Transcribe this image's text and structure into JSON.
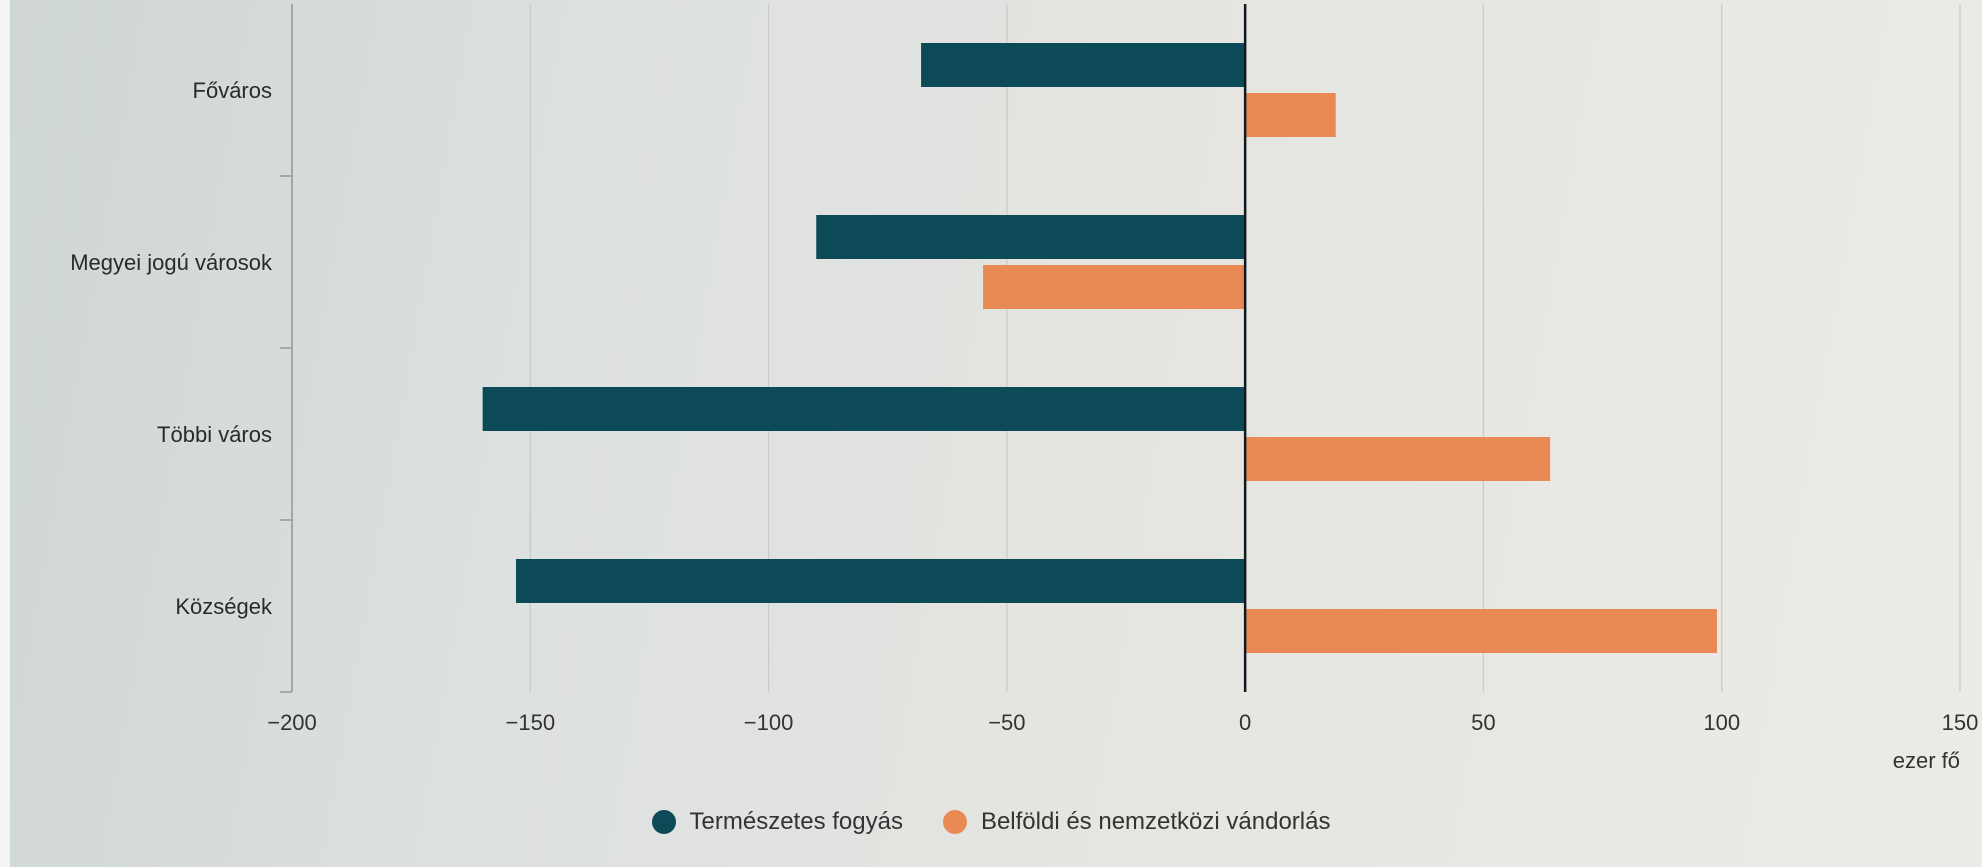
{
  "chart_data": {
    "type": "bar",
    "orientation": "horizontal",
    "categories": [
      "Főváros",
      "Megyei jogú városok",
      "Többi város",
      "Községek"
    ],
    "series": [
      {
        "name": "Természetes fogyás",
        "color": "#0b4a56",
        "values": [
          -68,
          -90,
          -160,
          -153
        ]
      },
      {
        "name": "Belföldi és nemzetközi vándorlás",
        "color": "#e98a55",
        "values": [
          19,
          -55,
          64,
          99
        ]
      }
    ],
    "xlim": [
      -200,
      150
    ],
    "xticks": [
      -200,
      -150,
      -100,
      -50,
      0,
      50,
      100,
      150
    ],
    "xtick_labels": [
      "−200",
      "−150",
      "−100",
      "−50",
      "0",
      "50",
      "100",
      "150"
    ],
    "xlabel": "ezer fő",
    "grid": true,
    "legend_position": "bottom"
  }
}
